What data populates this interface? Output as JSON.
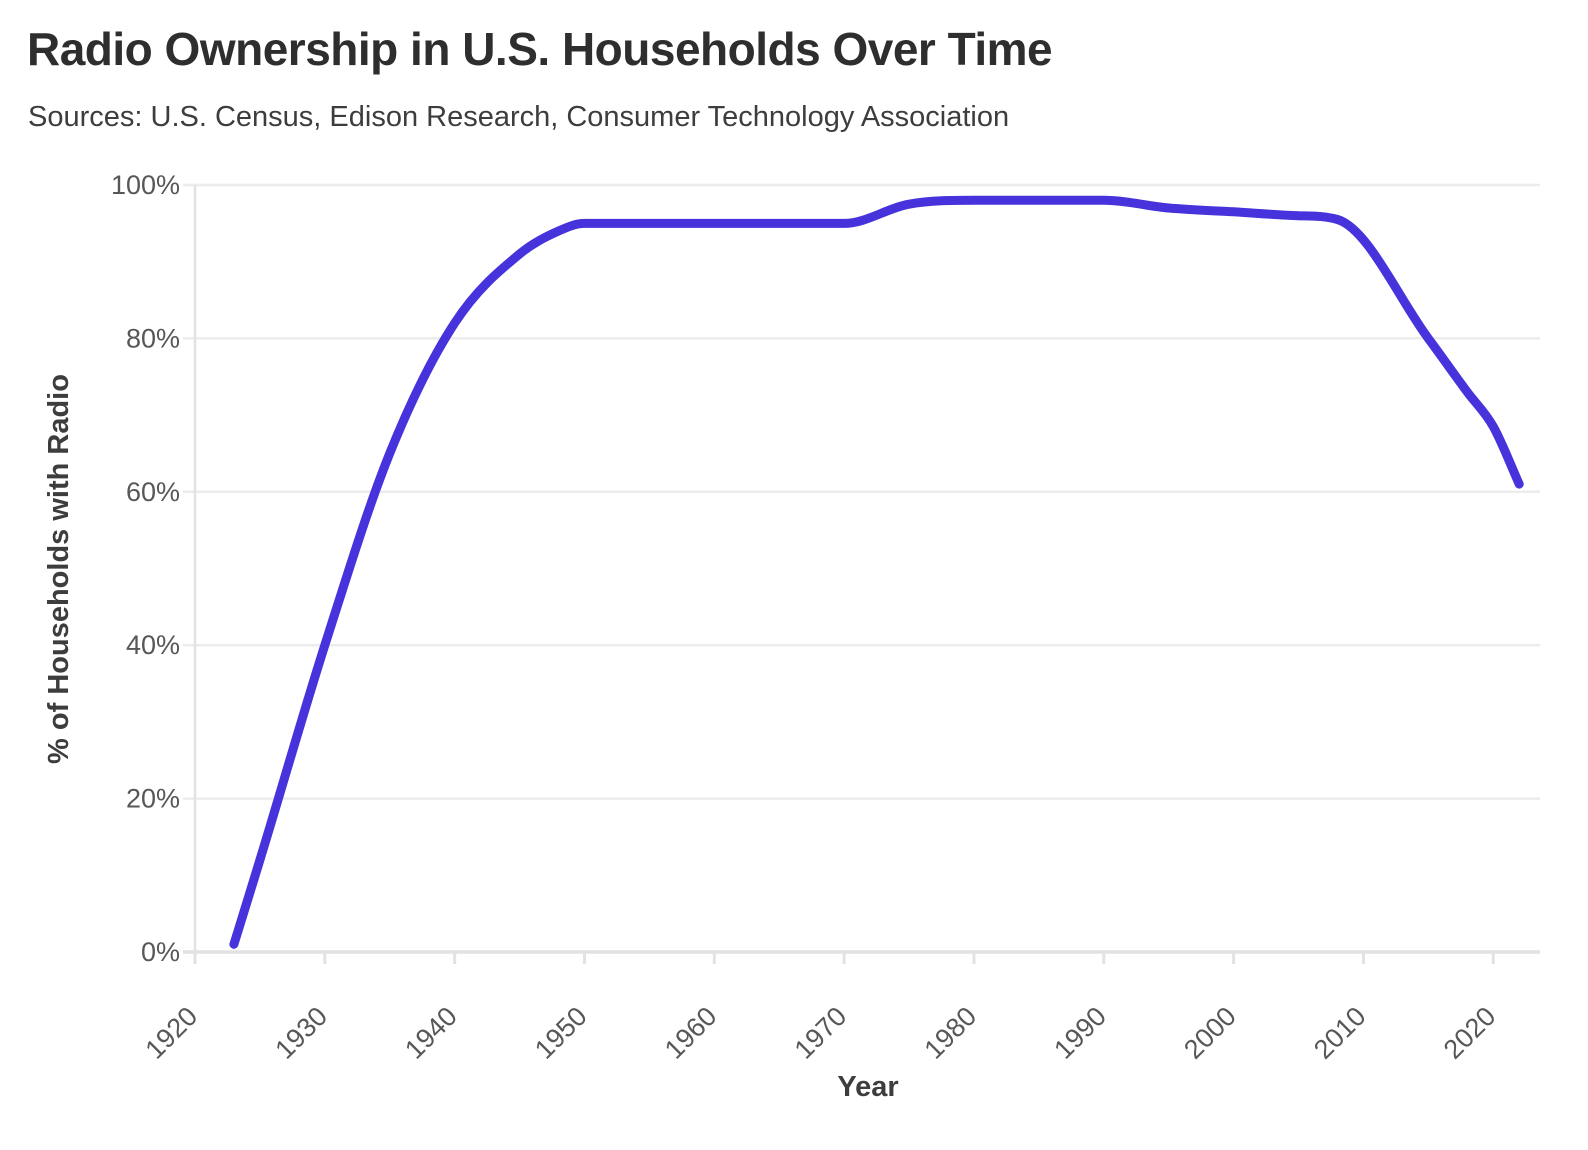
{
  "chart_data": {
    "type": "line",
    "title": "Radio Ownership in U.S. Households Over Time",
    "subtitle": "Sources: U.S. Census, Edison Research, Consumer Technology Association",
    "xlabel": "Year",
    "ylabel": "% of Households with Radio",
    "x_tick_values": [
      1920,
      1930,
      1940,
      1950,
      1960,
      1970,
      1980,
      1990,
      2000,
      2010,
      2020
    ],
    "x_tick_labels": [
      "1920",
      "1930",
      "1940",
      "1950",
      "1960",
      "1970",
      "1980",
      "1990",
      "2000",
      "2010",
      "2020"
    ],
    "y_tick_values": [
      0,
      20,
      40,
      60,
      80,
      100
    ],
    "y_tick_labels": [
      "0%",
      "20%",
      "40%",
      "60%",
      "80%",
      "100%"
    ],
    "xlim": [
      1920,
      2023.6
    ],
    "ylim": [
      0,
      100
    ],
    "grid": "horizontal-only",
    "legend": "none",
    "series": [
      {
        "name": "% of Households with Radio",
        "color": "#4733db",
        "points": [
          [
            1923,
            1
          ],
          [
            1925,
            12
          ],
          [
            1930,
            40
          ],
          [
            1935,
            65
          ],
          [
            1940,
            82
          ],
          [
            1945,
            91
          ],
          [
            1948,
            94
          ],
          [
            1950,
            95
          ],
          [
            1955,
            95
          ],
          [
            1960,
            95
          ],
          [
            1965,
            95
          ],
          [
            1970,
            95
          ],
          [
            1975,
            97.5
          ],
          [
            1980,
            98
          ],
          [
            1985,
            98
          ],
          [
            1990,
            98
          ],
          [
            1995,
            97
          ],
          [
            2000,
            96.5
          ],
          [
            2005,
            96
          ],
          [
            2008,
            95.5
          ],
          [
            2015,
            80
          ],
          [
            2018,
            73
          ],
          [
            2020,
            68.5
          ],
          [
            2022,
            61
          ]
        ]
      }
    ],
    "colors": {
      "line": "#4733db",
      "title_text": "#2e2e2e",
      "subtitle_text": "#3d3d3d",
      "tick_text": "#575757",
      "gridline": "#ececec",
      "axis_line": "#e2e2e2"
    }
  }
}
